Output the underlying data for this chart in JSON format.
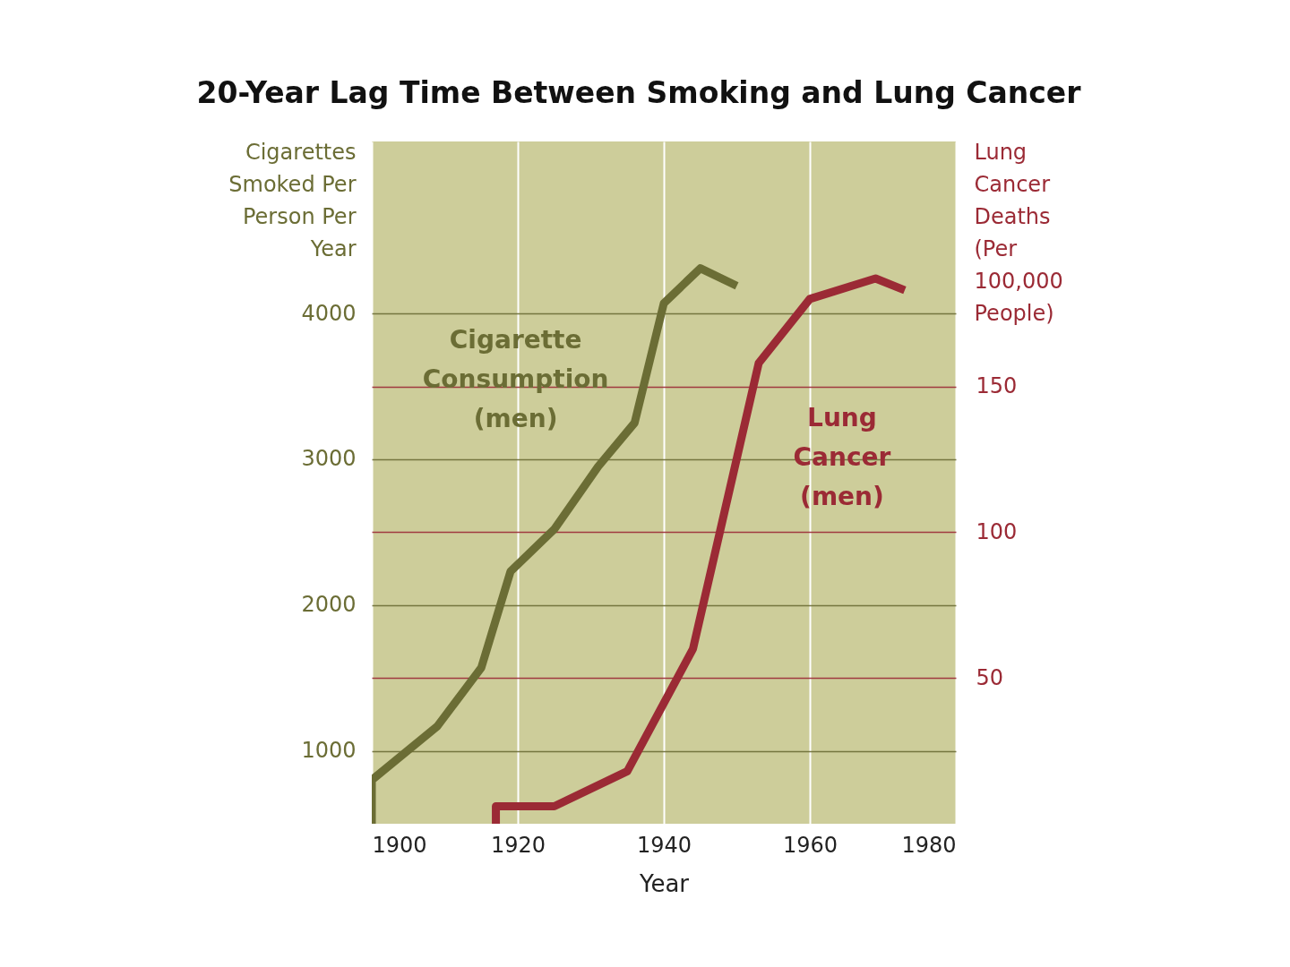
{
  "chart_data": {
    "type": "line",
    "title": "20-Year Lag Time Between Smoking and Lung Cancer",
    "xlabel": "Year",
    "ylabel": "Cigarettes Smoked Per Person Per Year",
    "y2label": "Lung Cancer Deaths (Per 100,000 People)",
    "series": [
      {
        "name": "Cigarette Consumption (men)",
        "color": "#6b6d35",
        "x": [
          1900,
          1900,
          1909,
          1915,
          1919,
          1925,
          1931,
          1936,
          1940,
          1945,
          1950
        ],
        "values": [
          500,
          800,
          1170,
          1570,
          2230,
          2520,
          2950,
          3250,
          4070,
          4310,
          4190
        ]
      },
      {
        "name": "Lung Cancer (men)",
        "color": "#9b2a35",
        "axis": "y2",
        "x": [
          1917,
          1917,
          1925,
          1935,
          1944,
          1953,
          1960,
          1969,
          1973
        ],
        "values": [
          0,
          6,
          6,
          18,
          60,
          158,
          180,
          187,
          183
        ]
      }
    ],
    "xlim": [
      1900,
      1980
    ],
    "xticks": [
      1900,
      1920,
      1940,
      1960,
      1980
    ],
    "ylim": [
      500,
      5180
    ],
    "yticks": [
      1000,
      2000,
      3000,
      4000
    ],
    "y2lim": [
      0,
      234
    ],
    "y2ticks": [
      50,
      100,
      150
    ],
    "grid": true
  }
}
